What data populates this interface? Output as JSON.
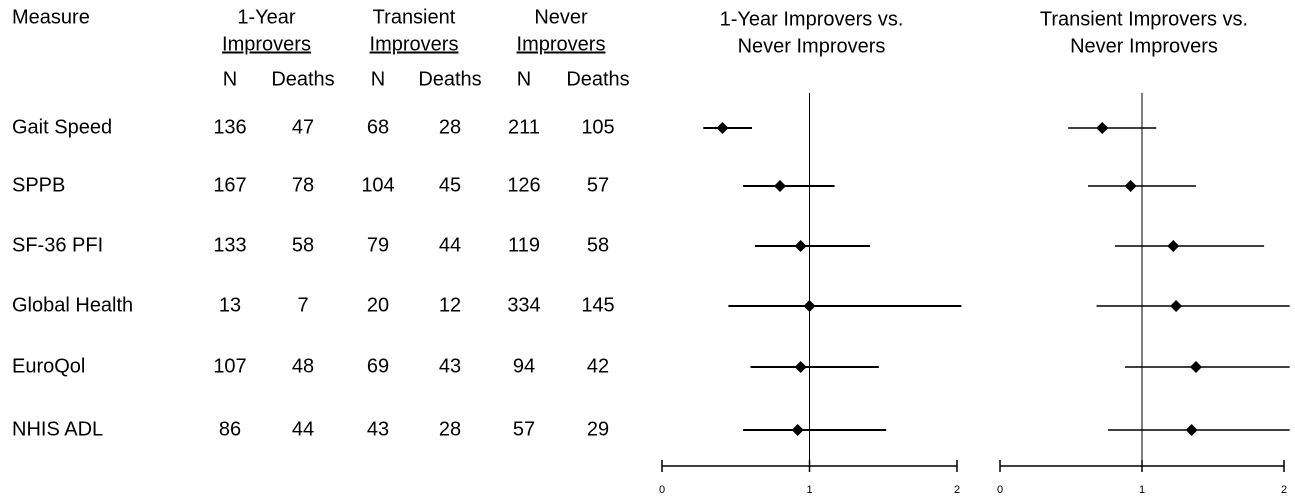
{
  "table": {
    "header": "Measure",
    "groups": [
      {
        "name": [
          "1-Year",
          "Improvers"
        ],
        "columns": [
          "N",
          "Deaths"
        ]
      },
      {
        "name": [
          "Transient",
          "Improvers"
        ],
        "columns": [
          "N",
          "Deaths"
        ]
      },
      {
        "name": [
          "Never",
          "Improvers"
        ],
        "columns": [
          "N",
          "Deaths"
        ]
      }
    ],
    "rows": [
      [
        "Gait Speed",
        136,
        47,
        68,
        28,
        211,
        105
      ],
      [
        "SPPB",
        167,
        78,
        104,
        45,
        126,
        57
      ],
      [
        "SF-36 PFI",
        133,
        58,
        79,
        44,
        119,
        58
      ],
      [
        "Global Health",
        13,
        7,
        20,
        12,
        334,
        145
      ],
      [
        "EuroQol",
        107,
        48,
        69,
        43,
        94,
        42
      ],
      [
        "NHIS ADL",
        86,
        44,
        43,
        28,
        57,
        29
      ]
    ]
  },
  "chart_data": [
    {
      "type": "forest",
      "title": [
        "1-Year Improvers vs.",
        "Never Improvers"
      ],
      "values": [
        0.41,
        0.8,
        0.94,
        1.0,
        0.94,
        0.92
      ],
      "ci_low": [
        0.28,
        0.55,
        0.63,
        0.45,
        0.6,
        0.55
      ],
      "ci_high": [
        0.61,
        1.17,
        1.41,
        2.03,
        1.47,
        1.52
      ],
      "xlim": [
        0,
        2
      ],
      "xticks": [
        0,
        1,
        2
      ],
      "reference": 1,
      "color": "#000000"
    },
    {
      "type": "forest",
      "title": [
        "Transient Improvers vs.",
        "Never Improvers"
      ],
      "values": [
        0.72,
        0.92,
        1.22,
        1.24,
        1.38,
        1.35
      ],
      "ci_low": [
        0.48,
        0.62,
        0.81,
        0.68,
        0.88,
        0.76
      ],
      "ci_high": [
        1.1,
        1.38,
        1.86,
        2.04,
        2.04,
        2.04
      ],
      "xlim": [
        0,
        2
      ],
      "xticks": [
        0,
        1,
        2
      ],
      "reference": 1,
      "color": "#000000"
    }
  ]
}
